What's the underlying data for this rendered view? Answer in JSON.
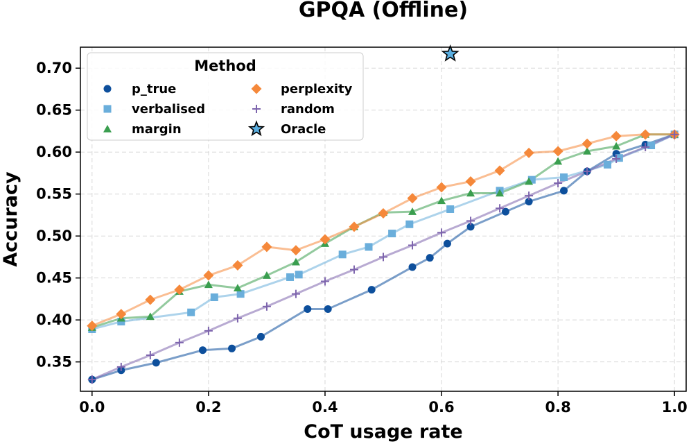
{
  "chart_data": {
    "type": "line",
    "title": "GPQA (Offline)",
    "xlabel": "CoT usage rate",
    "ylabel": "Accuracy",
    "xlim": [
      -0.02,
      1.02
    ],
    "ylim": [
      0.315,
      0.725
    ],
    "xticks": [
      0.0,
      0.2,
      0.4,
      0.6,
      0.8,
      1.0
    ],
    "xtick_labels": [
      "0.0",
      "0.2",
      "0.4",
      "0.6",
      "0.8",
      "1.0"
    ],
    "yticks": [
      0.35,
      0.4,
      0.45,
      0.5,
      0.55,
      0.6,
      0.65,
      0.7
    ],
    "ytick_labels": [
      "0.35",
      "0.40",
      "0.45",
      "0.50",
      "0.55",
      "0.60",
      "0.65",
      "0.70"
    ],
    "grid": true,
    "legend": {
      "title": "Method",
      "position": "top-left"
    },
    "series": [
      {
        "name": "p_true",
        "color": "#0d4f9c",
        "marker": "circle",
        "x": [
          0.0,
          0.05,
          0.11,
          0.19,
          0.24,
          0.29,
          0.37,
          0.405,
          0.48,
          0.55,
          0.58,
          0.61,
          0.65,
          0.71,
          0.75,
          0.81,
          0.85,
          0.9,
          0.95,
          1.0
        ],
        "y": [
          0.329,
          0.34,
          0.349,
          0.364,
          0.366,
          0.38,
          0.413,
          0.413,
          0.436,
          0.463,
          0.474,
          0.491,
          0.511,
          0.529,
          0.541,
          0.554,
          0.577,
          0.598,
          0.609,
          0.621
        ]
      },
      {
        "name": "verbalised",
        "color": "#6aaedb",
        "marker": "square",
        "x": [
          0.0,
          0.05,
          0.17,
          0.21,
          0.255,
          0.34,
          0.355,
          0.43,
          0.475,
          0.515,
          0.545,
          0.615,
          0.7,
          0.755,
          0.81,
          0.885,
          0.905,
          0.96,
          1.0
        ],
        "y": [
          0.389,
          0.398,
          0.409,
          0.427,
          0.431,
          0.451,
          0.454,
          0.478,
          0.487,
          0.503,
          0.514,
          0.532,
          0.554,
          0.567,
          0.57,
          0.585,
          0.593,
          0.608,
          0.621
        ]
      },
      {
        "name": "margin",
        "color": "#3a9e4f",
        "marker": "triangle",
        "x": [
          0.0,
          0.05,
          0.1,
          0.15,
          0.2,
          0.25,
          0.3,
          0.35,
          0.4,
          0.45,
          0.5,
          0.55,
          0.6,
          0.65,
          0.7,
          0.75,
          0.8,
          0.85,
          0.9,
          0.95,
          1.0
        ],
        "y": [
          0.391,
          0.402,
          0.404,
          0.434,
          0.442,
          0.438,
          0.453,
          0.469,
          0.491,
          0.511,
          0.528,
          0.529,
          0.542,
          0.551,
          0.551,
          0.565,
          0.589,
          0.601,
          0.607,
          0.621,
          0.621
        ]
      },
      {
        "name": "perplexity",
        "color": "#f5883a",
        "marker": "diamond",
        "x": [
          0.0,
          0.05,
          0.1,
          0.15,
          0.2,
          0.25,
          0.3,
          0.35,
          0.4,
          0.45,
          0.5,
          0.55,
          0.6,
          0.65,
          0.7,
          0.75,
          0.8,
          0.85,
          0.9,
          0.95,
          1.0
        ],
        "y": [
          0.393,
          0.407,
          0.424,
          0.436,
          0.453,
          0.465,
          0.487,
          0.483,
          0.496,
          0.511,
          0.527,
          0.545,
          0.558,
          0.565,
          0.578,
          0.599,
          0.601,
          0.61,
          0.619,
          0.621,
          0.621
        ]
      },
      {
        "name": "random",
        "color": "#7d64ad",
        "marker": "plus",
        "x": [
          0.0,
          0.05,
          0.1,
          0.15,
          0.2,
          0.25,
          0.3,
          0.35,
          0.4,
          0.45,
          0.5,
          0.55,
          0.6,
          0.65,
          0.7,
          0.75,
          0.8,
          0.85,
          0.9,
          0.95,
          1.0
        ],
        "y": [
          0.329,
          0.344,
          0.358,
          0.373,
          0.387,
          0.402,
          0.416,
          0.431,
          0.446,
          0.46,
          0.475,
          0.489,
          0.504,
          0.518,
          0.533,
          0.548,
          0.563,
          0.577,
          0.592,
          0.606,
          0.621
        ]
      }
    ],
    "oracle": {
      "name": "Oracle",
      "color": "#5aaee0",
      "marker": "star",
      "x": 0.615,
      "y": 0.717
    }
  }
}
